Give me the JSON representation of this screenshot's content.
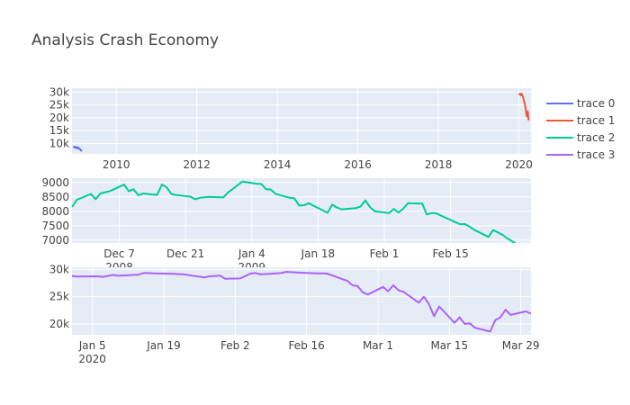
{
  "title": "Analysis Crash Economy",
  "colors": {
    "trace0": "#636efa",
    "trace1": "#EF553B",
    "trace2": "#00cc96",
    "trace3": "#ab63fa",
    "plot_bg": "#e5ecf6",
    "grid": "#ffffff"
  },
  "legend": {
    "placement": "top-right",
    "items": [
      {
        "name": "trace 0",
        "color": "#636efa"
      },
      {
        "name": "trace 1",
        "color": "#EF553B"
      },
      {
        "name": "trace 2",
        "color": "#00cc96"
      },
      {
        "name": "trace 3",
        "color": "#ab63fa"
      }
    ]
  },
  "chart_data": [
    {
      "type": "line",
      "x_type": "year",
      "xlim": [
        2008.9,
        2020.3
      ],
      "ylim": [
        6000,
        31500
      ],
      "grid": true,
      "x_ticks": [
        {
          "v": 2010,
          "label": "2010"
        },
        {
          "v": 2012,
          "label": "2012"
        },
        {
          "v": 2014,
          "label": "2014"
        },
        {
          "v": 2016,
          "label": "2016"
        },
        {
          "v": 2018,
          "label": "2018"
        },
        {
          "v": 2020,
          "label": "2020"
        }
      ],
      "y_ticks": [
        {
          "v": 10000,
          "label": "10k"
        },
        {
          "v": 15000,
          "label": "15k"
        },
        {
          "v": 20000,
          "label": "20k"
        },
        {
          "v": 25000,
          "label": "25k"
        },
        {
          "v": 30000,
          "label": "30k"
        }
      ],
      "series": [
        {
          "name": "trace 0",
          "color": "#636efa",
          "x": [
            2008.93,
            2008.96,
            2008.98,
            2009.0,
            2009.02,
            2009.04,
            2009.06,
            2009.08,
            2009.1,
            2009.12,
            2009.15
          ],
          "y": [
            8900,
            8500,
            8750,
            8300,
            8600,
            8100,
            8450,
            8000,
            7800,
            7400,
            7100
          ]
        },
        {
          "name": "trace 1",
          "color": "#EF553B",
          "x": [
            2020.0,
            2020.02,
            2020.04,
            2020.06,
            2020.08,
            2020.1,
            2020.12,
            2020.14,
            2020.16,
            2020.18,
            2020.2,
            2020.22,
            2020.24
          ],
          "y": [
            28900,
            29300,
            28700,
            29400,
            28800,
            28200,
            27000,
            25800,
            24500,
            22000,
            20500,
            22500,
            19000
          ]
        }
      ]
    },
    {
      "type": "line",
      "x_type": "date",
      "xlim": [
        "2008-11-27",
        "2009-03-04"
      ],
      "ylim": [
        6900,
        9150
      ],
      "grid": true,
      "x_ticks": [
        {
          "v": "2008-12-07",
          "label": "Dec 7",
          "sub": "2008"
        },
        {
          "v": "2008-12-21",
          "label": "Dec 21"
        },
        {
          "v": "2009-01-04",
          "label": "Jan 4",
          "sub": "2009"
        },
        {
          "v": "2009-01-18",
          "label": "Jan 18"
        },
        {
          "v": "2009-02-01",
          "label": "Feb 1"
        },
        {
          "v": "2009-02-15",
          "label": "Feb 15"
        }
      ],
      "y_ticks": [
        {
          "v": 7000,
          "label": "7000"
        },
        {
          "v": 7500,
          "label": "7500"
        },
        {
          "v": 8000,
          "label": "8000"
        },
        {
          "v": 8500,
          "label": "8500"
        },
        {
          "v": 9000,
          "label": "9000"
        }
      ],
      "series": [
        {
          "name": "trace 2",
          "color": "#00cc96",
          "x": [
            "2008-11-27",
            "2008-11-28",
            "2008-12-01",
            "2008-12-02",
            "2008-12-03",
            "2008-12-05",
            "2008-12-08",
            "2008-12-09",
            "2008-12-10",
            "2008-12-11",
            "2008-12-12",
            "2008-12-15",
            "2008-12-16",
            "2008-12-17",
            "2008-12-18",
            "2008-12-19",
            "2008-12-22",
            "2008-12-23",
            "2008-12-24",
            "2008-12-26",
            "2008-12-29",
            "2008-12-30",
            "2008-12-31",
            "2009-01-02",
            "2009-01-05",
            "2009-01-06",
            "2009-01-07",
            "2009-01-08",
            "2009-01-09",
            "2009-01-12",
            "2009-01-13",
            "2009-01-14",
            "2009-01-15",
            "2009-01-16",
            "2009-01-20",
            "2009-01-21",
            "2009-01-22",
            "2009-01-23",
            "2009-01-26",
            "2009-01-27",
            "2009-01-28",
            "2009-01-29",
            "2009-01-30",
            "2009-02-02",
            "2009-02-03",
            "2009-02-04",
            "2009-02-05",
            "2009-02-06",
            "2009-02-09",
            "2009-02-10",
            "2009-02-11",
            "2009-02-12",
            "2009-02-13",
            "2009-02-17",
            "2009-02-18",
            "2009-02-19",
            "2009-02-20",
            "2009-02-23",
            "2009-02-24",
            "2009-02-25",
            "2009-02-26",
            "2009-02-27",
            "2009-03-02",
            "2009-03-03",
            "2009-03-04"
          ],
          "y": [
            8150,
            8400,
            8600,
            8420,
            8620,
            8700,
            8930,
            8700,
            8770,
            8560,
            8620,
            8570,
            8930,
            8830,
            8600,
            8570,
            8510,
            8420,
            8470,
            8500,
            8480,
            8660,
            8780,
            9030,
            8960,
            8950,
            8770,
            8760,
            8610,
            8470,
            8450,
            8200,
            8210,
            8280,
            7950,
            8230,
            8130,
            8070,
            8110,
            8170,
            8380,
            8140,
            8000,
            7940,
            8080,
            7960,
            8090,
            8280,
            8270,
            7890,
            7940,
            7930,
            7850,
            7550,
            7560,
            7470,
            7360,
            7110,
            7350,
            7270,
            7180,
            7060,
            6760,
            6730,
            6880
          ]
        }
      ]
    },
    {
      "type": "line",
      "x_type": "date",
      "xlim": [
        "2020-01-01",
        "2020-03-31"
      ],
      "ylim": [
        18000,
        30400
      ],
      "grid": true,
      "x_ticks": [
        {
          "v": "2020-01-05",
          "label": "Jan 5",
          "sub": "2020"
        },
        {
          "v": "2020-01-19",
          "label": "Jan 19"
        },
        {
          "v": "2020-02-02",
          "label": "Feb 2"
        },
        {
          "v": "2020-02-16",
          "label": "Feb 16"
        },
        {
          "v": "2020-03-01",
          "label": "Mar 1"
        },
        {
          "v": "2020-03-15",
          "label": "Mar 15"
        },
        {
          "v": "2020-03-29",
          "label": "Mar 29"
        }
      ],
      "y_ticks": [
        {
          "v": 20000,
          "label": "20k"
        },
        {
          "v": 25000,
          "label": "25k"
        },
        {
          "v": 30000,
          "label": "30k"
        }
      ],
      "series": [
        {
          "name": "trace 3",
          "color": "#ab63fa",
          "x": [
            "2020-01-01",
            "2020-01-02",
            "2020-01-06",
            "2020-01-07",
            "2020-01-08",
            "2020-01-09",
            "2020-01-10",
            "2020-01-13",
            "2020-01-14",
            "2020-01-15",
            "2020-01-16",
            "2020-01-17",
            "2020-01-21",
            "2020-01-22",
            "2020-01-23",
            "2020-01-24",
            "2020-01-27",
            "2020-01-28",
            "2020-01-29",
            "2020-01-30",
            "2020-01-31",
            "2020-02-03",
            "2020-02-04",
            "2020-02-05",
            "2020-02-06",
            "2020-02-07",
            "2020-02-10",
            "2020-02-11",
            "2020-02-12",
            "2020-02-13",
            "2020-02-14",
            "2020-02-18",
            "2020-02-19",
            "2020-02-20",
            "2020-02-21",
            "2020-02-24",
            "2020-02-25",
            "2020-02-26",
            "2020-02-27",
            "2020-02-28",
            "2020-03-02",
            "2020-03-03",
            "2020-03-04",
            "2020-03-05",
            "2020-03-06",
            "2020-03-09",
            "2020-03-10",
            "2020-03-11",
            "2020-03-12",
            "2020-03-13",
            "2020-03-16",
            "2020-03-17",
            "2020-03-18",
            "2020-03-19",
            "2020-03-20",
            "2020-03-23",
            "2020-03-24",
            "2020-03-25",
            "2020-03-26",
            "2020-03-27",
            "2020-03-30",
            "2020-03-31"
          ],
          "y": [
            28800,
            28700,
            28750,
            28650,
            28800,
            29000,
            28850,
            29000,
            29050,
            29350,
            29350,
            29300,
            29200,
            29150,
            29100,
            28950,
            28550,
            28750,
            28800,
            28900,
            28300,
            28350,
            28800,
            29250,
            29350,
            29100,
            29300,
            29350,
            29550,
            29500,
            29450,
            29300,
            29300,
            29250,
            28900,
            27900,
            27100,
            26950,
            25800,
            25400,
            26800,
            26000,
            27100,
            26200,
            25900,
            23900,
            25000,
            23600,
            21400,
            23200,
            20200,
            21200,
            20000,
            20100,
            19300,
            18600,
            20700,
            21200,
            22600,
            21650,
            22300,
            21900
          ]
        }
      ]
    }
  ]
}
